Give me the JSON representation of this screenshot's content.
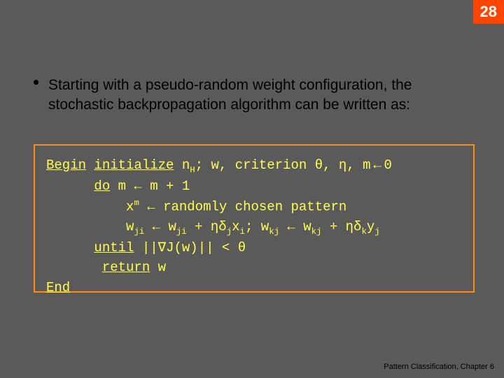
{
  "page_number": "28",
  "bullet": {
    "text": "Starting with a pseudo-random weight configuration, the stochastic backpropagation algorithm can be written as:"
  },
  "algo": {
    "begin": "Begin",
    "initialize": "initialize",
    "init_tail_a": " n",
    "init_tail_b": "; w, criterion θ, η, m",
    "init_tail_c": "0",
    "do": "do",
    "do_tail": " m ← m + 1",
    "line3_a": "x",
    "line3_b": " ← randomly chosen pattern",
    "line4_a": "w",
    "line4_b": " ←  w",
    "line4_c": " + ηδ",
    "line4_d": "x",
    "line4_e": "; w",
    "line4_f": " ← w",
    "line4_g": " + ηδ",
    "line4_h": "y",
    "until": "until",
    "until_tail": " ||∇J(w)|| < θ",
    "return": "return",
    "return_tail": " w",
    "end": "End",
    "sub_H": "H",
    "sub_ji": "ji",
    "sub_j": "j",
    "sub_i": "i",
    "sub_kj": "kj",
    "sub_k": "k",
    "sup_m": "m"
  },
  "footer": "Pattern Classification, Chapter 6",
  "colors": {
    "background": "#5a5a5a",
    "accent": "#ff4500",
    "box_border": "#ff8c1a",
    "code_text": "#ffff4d",
    "body_text": "#000000"
  }
}
